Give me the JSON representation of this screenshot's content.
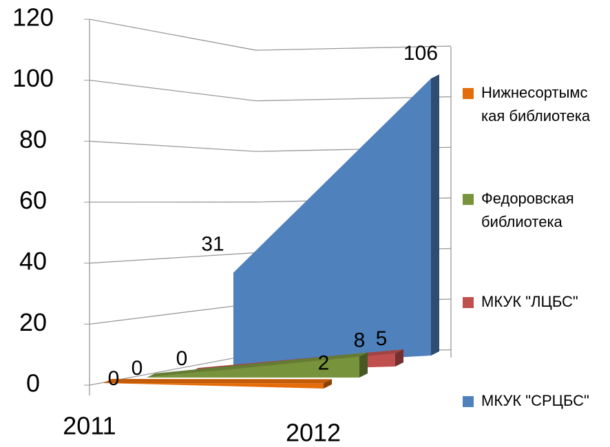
{
  "chart_data": {
    "type": "area3d",
    "categories": [
      "2011",
      "2012"
    ],
    "series": [
      {
        "name": "Нижнесортымская библиотека",
        "color": "#e46c0a",
        "values": [
          0,
          2
        ]
      },
      {
        "name": "Федоровская библиотека",
        "color": "#77933c",
        "values": [
          0,
          8
        ]
      },
      {
        "name": "МКУК \"ЛЦБС\"",
        "color": "#c0504d",
        "values": [
          0,
          5
        ]
      },
      {
        "name": "МКУК \"СРЦБС\"",
        "color": "#4f81bd",
        "values": [
          31,
          106
        ]
      }
    ],
    "ylim": [
      0,
      120
    ],
    "yticks": [
      0,
      20,
      40,
      60,
      80,
      100,
      120
    ],
    "grid": true,
    "legend": "right"
  }
}
